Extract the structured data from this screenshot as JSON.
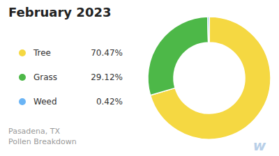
{
  "chart_data": {
    "type": "donut",
    "title": "February 2023",
    "subtitle": "Pasadena, TX\nPollen Breakdown",
    "categories": [
      "Tree",
      "Grass",
      "Weed"
    ],
    "values": [
      70.47,
      29.12,
      0.42
    ],
    "value_labels": [
      "70.47%",
      "29.12%",
      "0.42%"
    ],
    "colors": [
      "#f5d842",
      "#4db848",
      "#6ab4f5"
    ],
    "legend": "left",
    "annotations": [
      {
        "text": "w"
      }
    ]
  }
}
